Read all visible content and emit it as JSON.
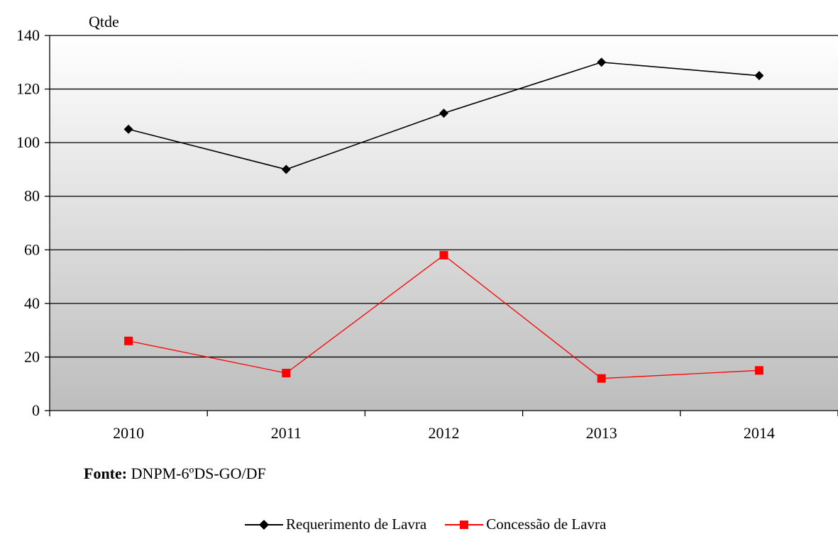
{
  "chart_data": {
    "type": "line",
    "ylabel": "Qtde",
    "ylim": [
      0,
      140
    ],
    "yticks": [
      0,
      20,
      40,
      60,
      80,
      100,
      120,
      140
    ],
    "categories": [
      "2010",
      "2011",
      "2012",
      "2013",
      "2014"
    ],
    "grid": true,
    "legend_position": "bottom",
    "series": [
      {
        "name": "Requerimento de Lavra",
        "values": [
          105,
          90,
          111,
          130,
          125
        ],
        "color": "#000000",
        "marker": "diamond"
      },
      {
        "name": "Concessão de Lavra",
        "values": [
          26,
          14,
          58,
          12,
          15
        ],
        "color": "#ff0000",
        "marker": "square"
      }
    ],
    "background": "vertical gradient white to gray"
  },
  "source": {
    "label": "Fonte:",
    "text": " DNPM-6ºDS-GO/DF"
  }
}
